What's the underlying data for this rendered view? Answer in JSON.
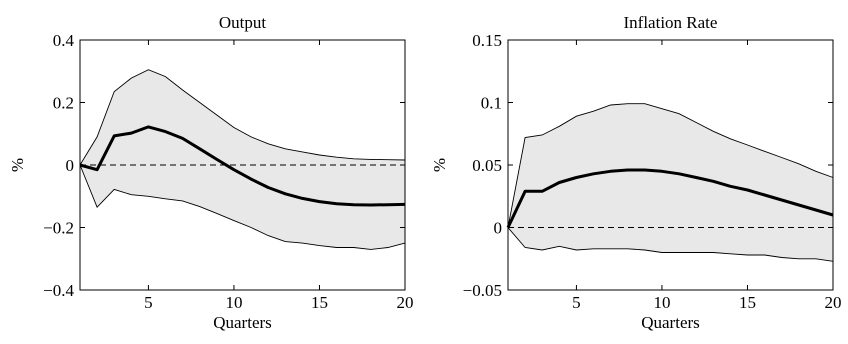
{
  "chart_data": [
    {
      "type": "line",
      "title": "Output",
      "xlabel": "Quarters",
      "ylabel": "%",
      "xlim": [
        1,
        20
      ],
      "ylim": [
        -0.4,
        0.4
      ],
      "x_ticks": [
        5,
        10,
        15,
        20
      ],
      "x_tick_labels": [
        "5",
        "10",
        "15",
        "20"
      ],
      "y_ticks": [
        -0.4,
        -0.2,
        0,
        0.2,
        0.4
      ],
      "y_tick_labels": [
        "−0.4",
        "−0.2",
        "0",
        "0.2",
        "0.4"
      ],
      "zero_line": "dashed",
      "x": [
        1,
        2,
        3,
        4,
        5,
        6,
        7,
        8,
        9,
        10,
        11,
        12,
        13,
        14,
        15,
        16,
        17,
        18,
        19,
        20
      ],
      "series": [
        {
          "role": "median",
          "values": [
            0,
            -0.015,
            0.093,
            0.102,
            0.122,
            0.107,
            0.085,
            0.052,
            0.018,
            -0.015,
            -0.045,
            -0.072,
            -0.092,
            -0.107,
            -0.117,
            -0.124,
            -0.127,
            -0.128,
            -0.127,
            -0.126
          ]
        },
        {
          "role": "upper_band",
          "values": [
            0,
            0.09,
            0.235,
            0.278,
            0.305,
            0.283,
            0.24,
            0.2,
            0.16,
            0.12,
            0.09,
            0.068,
            0.052,
            0.042,
            0.032,
            0.025,
            0.02,
            0.018,
            0.017,
            0.016
          ]
        },
        {
          "role": "lower_band",
          "values": [
            0,
            -0.135,
            -0.078,
            -0.095,
            -0.1,
            -0.108,
            -0.115,
            -0.133,
            -0.155,
            -0.178,
            -0.2,
            -0.226,
            -0.245,
            -0.25,
            -0.258,
            -0.264,
            -0.264,
            -0.27,
            -0.264,
            -0.25
          ]
        }
      ],
      "grid": false,
      "band_color": "#e8e8e8"
    },
    {
      "type": "line",
      "title": "Inflation Rate",
      "xlabel": "Quarters",
      "ylabel": "%",
      "xlim": [
        1,
        20
      ],
      "ylim": [
        -0.05,
        0.15
      ],
      "x_ticks": [
        5,
        10,
        15,
        20
      ],
      "x_tick_labels": [
        "5",
        "10",
        "15",
        "20"
      ],
      "y_ticks": [
        -0.05,
        0,
        0.05,
        0.1,
        0.15
      ],
      "y_tick_labels": [
        "−0.05",
        "0",
        "0.05",
        "0.1",
        "0.15"
      ],
      "zero_line": "dashed",
      "x": [
        1,
        2,
        3,
        4,
        5,
        6,
        7,
        8,
        9,
        10,
        11,
        12,
        13,
        14,
        15,
        16,
        17,
        18,
        19,
        20
      ],
      "series": [
        {
          "role": "median",
          "values": [
            0,
            0.029,
            0.029,
            0.036,
            0.04,
            0.043,
            0.045,
            0.046,
            0.046,
            0.045,
            0.043,
            0.04,
            0.037,
            0.033,
            0.03,
            0.026,
            0.022,
            0.018,
            0.014,
            0.01
          ]
        },
        {
          "role": "upper_band",
          "values": [
            0,
            0.072,
            0.074,
            0.081,
            0.089,
            0.093,
            0.098,
            0.099,
            0.099,
            0.095,
            0.091,
            0.084,
            0.077,
            0.071,
            0.066,
            0.061,
            0.056,
            0.051,
            0.045,
            0.04
          ]
        },
        {
          "role": "lower_band",
          "values": [
            0,
            -0.016,
            -0.018,
            -0.015,
            -0.018,
            -0.017,
            -0.017,
            -0.017,
            -0.018,
            -0.02,
            -0.02,
            -0.02,
            -0.02,
            -0.021,
            -0.022,
            -0.022,
            -0.024,
            -0.025,
            -0.025,
            -0.027
          ]
        }
      ],
      "grid": false,
      "band_color": "#e8e8e8"
    }
  ]
}
